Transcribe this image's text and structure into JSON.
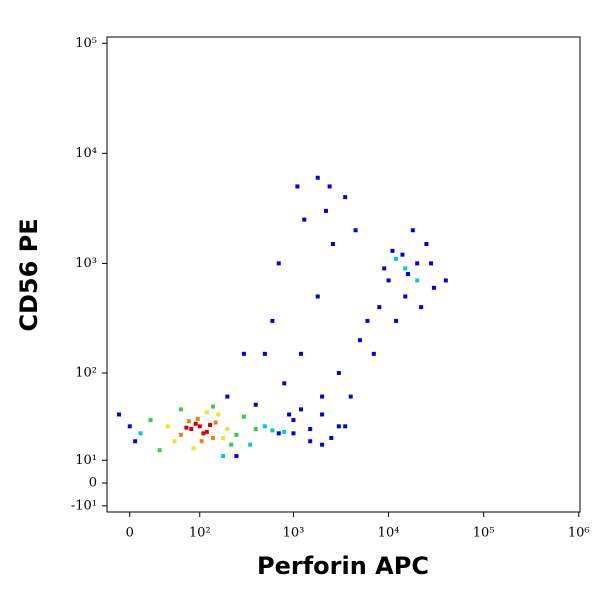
{
  "chart_data": {
    "type": "scatter",
    "x_label": "Perforin APC",
    "y_label": "CD56 PE",
    "xscale": "biexponential",
    "yscale": "biexponential",
    "xlim": [
      -22,
      1030000
    ],
    "ylim": [
      -13,
      114000
    ],
    "xticks": [
      0,
      {
        "value": 100,
        "label": "10²"
      },
      {
        "value": 1000,
        "label": "10³"
      },
      {
        "value": 10000,
        "label": "10⁴"
      },
      {
        "value": 100000,
        "label": "10⁵"
      },
      {
        "value": 1000000,
        "label": "10⁶"
      }
    ],
    "yticks": [
      {
        "value": -10,
        "label": "-10¹"
      },
      0,
      {
        "value": 10,
        "label": "10¹"
      },
      {
        "value": 100,
        "label": "10²"
      },
      {
        "value": 1000,
        "label": "10³"
      },
      {
        "value": 10000,
        "label": "10⁴"
      },
      {
        "value": 100000,
        "label": "10⁵"
      }
    ],
    "series": [
      {
        "color": "#0000e0",
        "x": [
          0,
          5,
          -10,
          250,
          700,
          1000,
          1500,
          2000,
          3000,
          2500,
          800,
          1200,
          4000,
          5000,
          6000,
          1800,
          900,
          3500,
          2200,
          1100,
          700,
          500,
          400,
          1300,
          2600,
          8000,
          10000,
          15000,
          20000,
          25000,
          30000,
          18000,
          12000,
          9000,
          40000,
          22000,
          14000,
          11000,
          16000,
          28000,
          3000,
          2000,
          1500,
          1800,
          2400,
          4500,
          7000,
          600,
          300,
          200,
          1000,
          2000,
          3500,
          1200
        ],
        "y": [
          30,
          20,
          40,
          12,
          25,
          35,
          28,
          40,
          30,
          22,
          80,
          150,
          60,
          200,
          300,
          500,
          40,
          4000,
          3000,
          5000,
          1000,
          150,
          50,
          2500,
          1500,
          400,
          700,
          500,
          1000,
          1500,
          600,
          2000,
          300,
          900,
          700,
          400,
          1200,
          1300,
          800,
          1000,
          100,
          60,
          20,
          6000,
          5000,
          2000,
          150,
          300,
          150,
          60,
          25,
          18,
          30,
          45
        ]
      },
      {
        "color": "#00c8e0",
        "x": [
          10,
          500,
          600,
          350,
          15000,
          20000,
          12000,
          800,
          180
        ],
        "y": [
          25,
          30,
          27,
          18,
          900,
          700,
          1100,
          26,
          12
        ]
      },
      {
        "color": "#30d040",
        "x": [
          20,
          250,
          300,
          30,
          220,
          140,
          60,
          400
        ],
        "y": [
          35,
          24,
          38,
          15,
          18,
          48,
          45,
          28
        ]
      },
      {
        "color": "#e8e820",
        "x": [
          40,
          200,
          180,
          50,
          160,
          120,
          85
        ],
        "y": [
          30,
          28,
          22,
          20,
          40,
          42,
          16
        ]
      },
      {
        "color": "#f08010",
        "x": [
          60,
          150,
          95,
          140,
          75,
          105
        ],
        "y": [
          24,
          33,
          36,
          22,
          34,
          20
        ]
      },
      {
        "color": "#d80000",
        "x": [
          80,
          100,
          120,
          90,
          110,
          70,
          130
        ],
        "y": [
          28,
          30,
          26,
          32,
          25,
          29,
          31
        ]
      }
    ]
  }
}
